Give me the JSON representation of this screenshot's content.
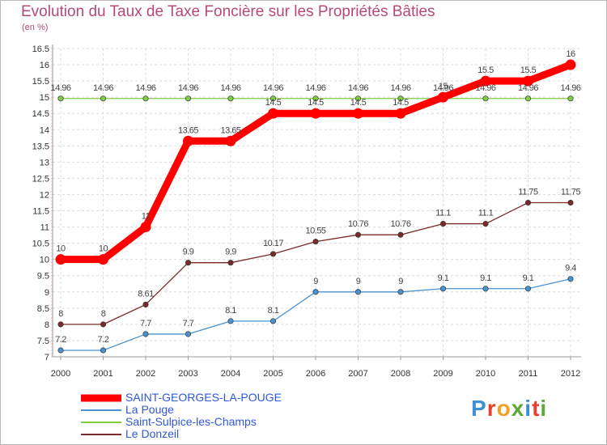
{
  "title": "Evolution du Taux de Taxe Foncière sur les Propriétés Bâties",
  "unit_label": "(en %)",
  "logo_text": "Proxiti",
  "logo_colors": [
    "#3b8fd6",
    "#e8402e",
    "#f0a128",
    "#5aaa34",
    "#3b8fd6",
    "#e8402e",
    "#5aaa34"
  ],
  "chart_data": {
    "type": "line",
    "title": "Evolution du Taux de Taxe Foncière sur les Propriétés Bâties",
    "xlabel": "",
    "ylabel": "(en %)",
    "ylim": [
      7,
      16.5
    ],
    "yticks": [
      "7",
      "7.5",
      "8",
      "8.5",
      "9",
      "9.5",
      "10",
      "10.5",
      "11",
      "11.5",
      "12",
      "12.5",
      "13",
      "13.5",
      "14",
      "14.5",
      "15",
      "15.5",
      "16",
      "16.5"
    ],
    "categories": [
      "2000",
      "2001",
      "2002",
      "2003",
      "2004",
      "2005",
      "2006",
      "2007",
      "2008",
      "2009",
      "2010",
      "2011",
      "2012"
    ],
    "grid": true,
    "legend_position": "bottom-left",
    "series": [
      {
        "name": "SAINT-GEORGES-LA-POUGE",
        "color": "#ff0000",
        "bold": true,
        "values": [
          10,
          10,
          11,
          13.65,
          13.65,
          14.5,
          14.5,
          14.5,
          14.5,
          15,
          15.5,
          15.5,
          16
        ],
        "labels": [
          "10",
          "10",
          "11",
          "13.65",
          "13.65",
          "14.5",
          "14.5",
          "14.5",
          "14.5",
          "15",
          "15.5",
          "15.5",
          "16"
        ]
      },
      {
        "name": "La Pouge",
        "color": "#4a93cf",
        "bold": false,
        "values": [
          7.2,
          7.2,
          7.7,
          7.7,
          8.1,
          8.1,
          9,
          9,
          9,
          9.1,
          9.1,
          9.1,
          9.4
        ],
        "labels": [
          "7.2",
          "7.2",
          "7.7",
          "7.7",
          "8.1",
          "8.1",
          "9",
          "9",
          "9",
          "9.1",
          "9.1",
          "9.1",
          "9.4"
        ]
      },
      {
        "name": "Saint-Sulpice-les-Champs",
        "color": "#7fcc45",
        "bold": false,
        "values": [
          14.96,
          14.96,
          14.96,
          14.96,
          14.96,
          14.96,
          14.96,
          14.96,
          14.96,
          14.96,
          14.96,
          14.96,
          14.96
        ],
        "labels": [
          "14.96",
          "14.96",
          "14.96",
          "14.96",
          "14.96",
          "14.96",
          "14.96",
          "14.96",
          "14.96",
          "14.96",
          "14.96",
          "14.96",
          "14.96"
        ]
      },
      {
        "name": "Le Donzeil",
        "color": "#7a2a2a",
        "bold": false,
        "values": [
          8,
          8,
          8.61,
          9.9,
          9.9,
          10.17,
          10.55,
          10.76,
          10.76,
          11.1,
          11.1,
          11.75,
          11.75
        ],
        "labels": [
          "8",
          "8",
          "8.61",
          "9.9",
          "9.9",
          "10.17",
          "10.55",
          "10.76",
          "10.76",
          "11.1",
          "11.1",
          "11.75",
          "11.75"
        ]
      }
    ]
  }
}
